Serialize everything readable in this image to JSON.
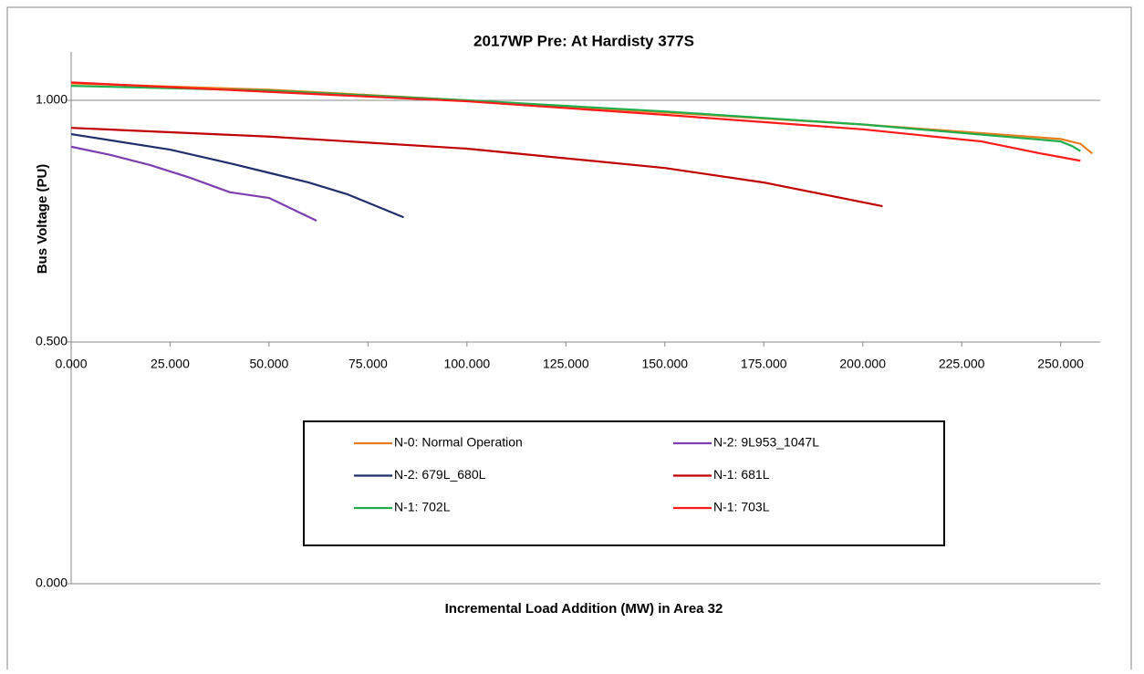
{
  "chart_data": {
    "type": "line",
    "title": "2017WP Pre: At Hardisty 377S",
    "x_label": "Incremental Load Addition (MW) in Area 32",
    "y_label": "Bus Voltage (PU)",
    "xlim": [
      0,
      260
    ],
    "ylim": [
      0,
      1.1
    ],
    "xticks": [
      {
        "value": 0,
        "label": "0.000"
      },
      {
        "value": 25,
        "label": "25.000"
      },
      {
        "value": 50,
        "label": "50.000"
      },
      {
        "value": 75,
        "label": "75.000"
      },
      {
        "value": 100,
        "label": "100.000"
      },
      {
        "value": 125,
        "label": "125.000"
      },
      {
        "value": 150,
        "label": "150.000"
      },
      {
        "value": 175,
        "label": "175.000"
      },
      {
        "value": 200,
        "label": "200.000"
      },
      {
        "value": 225,
        "label": "225.000"
      },
      {
        "value": 250,
        "label": "250.000"
      }
    ],
    "yticks": [
      {
        "value": 0,
        "label": "0.000"
      },
      {
        "value": 0.5,
        "label": "0.500"
      },
      {
        "value": 1,
        "label": "1.000"
      }
    ],
    "series": [
      {
        "name": "N-0: Normal Operation",
        "color": "#e87d1e",
        "x": [
          0,
          50,
          100,
          150,
          200,
          250,
          255,
          258
        ],
        "values": [
          1.035,
          1.022,
          1.0,
          0.975,
          0.95,
          0.92,
          0.91,
          0.89
        ]
      },
      {
        "name": "N-2: 9L953_1047L",
        "color": "#7d3fb0",
        "x": [
          0,
          10,
          20,
          30,
          40,
          50,
          62
        ],
        "values": [
          0.904,
          0.887,
          0.866,
          0.84,
          0.81,
          0.798,
          0.751
        ]
      },
      {
        "name": "N-2: 679L_680L",
        "color": "#1f2f6b",
        "x": [
          0,
          25,
          40,
          50,
          60,
          70,
          84
        ],
        "values": [
          0.93,
          0.898,
          0.87,
          0.85,
          0.83,
          0.805,
          0.758
        ]
      },
      {
        "name": "N-1: 681L",
        "color": "#c00000",
        "x": [
          0,
          50,
          100,
          150,
          175,
          205
        ],
        "values": [
          0.943,
          0.925,
          0.9,
          0.86,
          0.83,
          0.781
        ]
      },
      {
        "name": "N-1: 702L",
        "color": "#1fae4b",
        "x": [
          0,
          50,
          100,
          150,
          200,
          250,
          253,
          255
        ],
        "values": [
          1.03,
          1.02,
          1.0,
          0.977,
          0.95,
          0.915,
          0.905,
          0.895
        ]
      },
      {
        "name": "N-1: 703L",
        "color": "#ff1a1a",
        "x": [
          0,
          100,
          150,
          200,
          230,
          245,
          255
        ],
        "values": [
          1.037,
          0.998,
          0.97,
          0.94,
          0.915,
          0.89,
          0.875
        ]
      }
    ]
  }
}
